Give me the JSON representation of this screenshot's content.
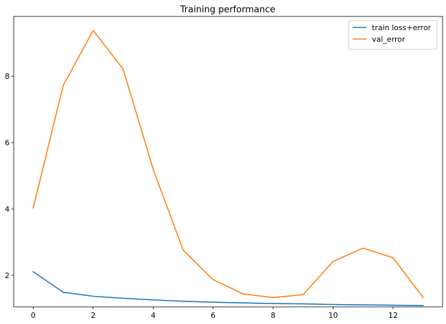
{
  "chart_data": {
    "type": "line",
    "title": "Training performance",
    "xlabel": "",
    "ylabel": "",
    "x": [
      0,
      1,
      2,
      3,
      4,
      5,
      6,
      7,
      8,
      9,
      10,
      11,
      12,
      13
    ],
    "xlim": [
      -0.65,
      13.65
    ],
    "ylim": [
      1.05,
      9.8
    ],
    "xticks": [
      0,
      2,
      4,
      6,
      8,
      10,
      12
    ],
    "yticks": [
      2,
      4,
      6,
      8
    ],
    "grid": false,
    "legend_position": "top-right",
    "series": [
      {
        "name": "train loss+error",
        "color": "#1f77b4",
        "values": [
          2.11,
          1.49,
          1.37,
          1.31,
          1.26,
          1.22,
          1.19,
          1.17,
          1.15,
          1.14,
          1.12,
          1.11,
          1.1,
          1.09
        ]
      },
      {
        "name": "val_error",
        "color": "#ff7f0e",
        "values": [
          4.03,
          7.72,
          9.38,
          8.21,
          5.2,
          2.76,
          1.87,
          1.44,
          1.33,
          1.42,
          2.42,
          2.82,
          2.53,
          1.33
        ]
      }
    ]
  }
}
